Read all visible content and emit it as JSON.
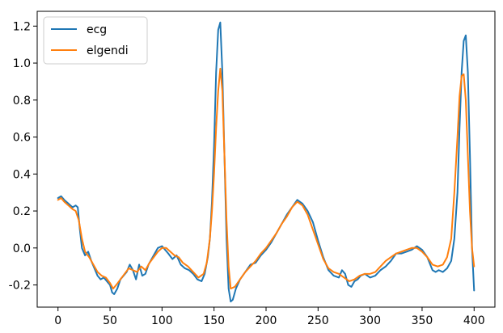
{
  "chart_data": {
    "type": "line",
    "title": "",
    "xlabel": "",
    "ylabel": "",
    "xlim": [
      -20,
      420
    ],
    "ylim": [
      -0.32,
      1.28
    ],
    "grid": false,
    "legend_position": "top-left",
    "x_ticks": [
      0,
      50,
      100,
      150,
      200,
      250,
      300,
      350,
      400
    ],
    "x_tick_labels": [
      "0",
      "50",
      "100",
      "150",
      "200",
      "250",
      "300",
      "350",
      "400"
    ],
    "y_ticks": [
      -0.2,
      0.0,
      0.2,
      0.4,
      0.6,
      0.8,
      1.0,
      1.2
    ],
    "y_tick_labels": [
      "-0.2",
      "0.0",
      "0.2",
      "0.4",
      "0.6",
      "0.8",
      "1.0",
      "1.2"
    ],
    "series": [
      {
        "name": "ecg",
        "color": "#1f77b4",
        "x": [
          0,
          3,
          6,
          10,
          14,
          17,
          19,
          21,
          23,
          26,
          29,
          32,
          35,
          38,
          41,
          44,
          47,
          50,
          52,
          54,
          57,
          60,
          63,
          66,
          69,
          72,
          75,
          78,
          81,
          84,
          87,
          90,
          93,
          96,
          100,
          103,
          106,
          110,
          114,
          118,
          122,
          126,
          130,
          134,
          138,
          141,
          144,
          146,
          148,
          150,
          152,
          154,
          156,
          158,
          160,
          162,
          164,
          166,
          168,
          171,
          175,
          180,
          185,
          190,
          195,
          200,
          205,
          210,
          215,
          220,
          225,
          230,
          235,
          240,
          245,
          250,
          255,
          260,
          265,
          270,
          273,
          276,
          279,
          282,
          285,
          288,
          291,
          295,
          300,
          305,
          310,
          315,
          320,
          325,
          330,
          335,
          340,
          345,
          350,
          355,
          360,
          363,
          366,
          370,
          374,
          378,
          381,
          384,
          386,
          388,
          390,
          392,
          394,
          396,
          398,
          400
        ],
        "y": [
          0.27,
          0.28,
          0.26,
          0.24,
          0.22,
          0.23,
          0.22,
          0.1,
          0.0,
          -0.04,
          -0.02,
          -0.07,
          -0.11,
          -0.15,
          -0.17,
          -0.16,
          -0.18,
          -0.2,
          -0.24,
          -0.25,
          -0.22,
          -0.17,
          -0.15,
          -0.13,
          -0.09,
          -0.12,
          -0.17,
          -0.09,
          -0.15,
          -0.14,
          -0.09,
          -0.06,
          -0.03,
          0.0,
          0.01,
          -0.01,
          -0.03,
          -0.06,
          -0.04,
          -0.09,
          -0.11,
          -0.12,
          -0.14,
          -0.17,
          -0.18,
          -0.14,
          -0.05,
          0.05,
          0.25,
          0.55,
          0.95,
          1.18,
          1.22,
          0.95,
          0.5,
          0.05,
          -0.22,
          -0.29,
          -0.28,
          -0.22,
          -0.17,
          -0.13,
          -0.09,
          -0.08,
          -0.04,
          -0.01,
          0.03,
          0.08,
          0.13,
          0.18,
          0.22,
          0.26,
          0.24,
          0.2,
          0.14,
          0.04,
          -0.05,
          -0.12,
          -0.15,
          -0.16,
          -0.12,
          -0.14,
          -0.2,
          -0.21,
          -0.18,
          -0.17,
          -0.15,
          -0.14,
          -0.16,
          -0.15,
          -0.12,
          -0.1,
          -0.07,
          -0.03,
          -0.03,
          -0.02,
          -0.01,
          0.01,
          -0.01,
          -0.05,
          -0.12,
          -0.13,
          -0.12,
          -0.13,
          -0.11,
          -0.07,
          0.05,
          0.3,
          0.65,
          0.95,
          1.12,
          1.15,
          0.95,
          0.5,
          0.0,
          -0.23
        ]
      },
      {
        "name": "elgendi",
        "color": "#ff7f0e",
        "x": [
          0,
          3,
          6,
          10,
          14,
          17,
          20,
          23,
          26,
          30,
          34,
          38,
          42,
          46,
          50,
          53,
          56,
          60,
          64,
          68,
          72,
          76,
          80,
          84,
          88,
          92,
          96,
          100,
          104,
          108,
          112,
          116,
          120,
          125,
          130,
          135,
          140,
          143,
          146,
          148,
          150,
          152,
          154,
          156,
          158,
          160,
          162,
          164,
          166,
          170,
          175,
          180,
          185,
          190,
          195,
          200,
          205,
          210,
          215,
          220,
          225,
          230,
          235,
          240,
          245,
          250,
          255,
          260,
          265,
          270,
          275,
          280,
          285,
          290,
          295,
          300,
          305,
          310,
          315,
          320,
          325,
          330,
          335,
          340,
          345,
          350,
          355,
          360,
          365,
          370,
          374,
          378,
          381,
          384,
          386,
          388,
          390,
          392,
          394,
          396,
          398,
          400
        ],
        "y": [
          0.26,
          0.27,
          0.25,
          0.23,
          0.21,
          0.2,
          0.15,
          0.05,
          -0.02,
          -0.05,
          -0.09,
          -0.13,
          -0.15,
          -0.16,
          -0.19,
          -0.22,
          -0.2,
          -0.17,
          -0.14,
          -0.11,
          -0.12,
          -0.13,
          -0.1,
          -0.12,
          -0.08,
          -0.05,
          -0.02,
          0.0,
          0.0,
          -0.02,
          -0.04,
          -0.05,
          -0.08,
          -0.1,
          -0.13,
          -0.16,
          -0.14,
          -0.08,
          0.05,
          0.2,
          0.4,
          0.65,
          0.85,
          0.97,
          0.85,
          0.5,
          0.15,
          -0.1,
          -0.22,
          -0.21,
          -0.17,
          -0.13,
          -0.1,
          -0.07,
          -0.03,
          0.0,
          0.04,
          0.08,
          0.13,
          0.17,
          0.22,
          0.25,
          0.23,
          0.18,
          0.1,
          0.02,
          -0.06,
          -0.11,
          -0.13,
          -0.14,
          -0.16,
          -0.18,
          -0.17,
          -0.15,
          -0.14,
          -0.14,
          -0.13,
          -0.1,
          -0.07,
          -0.05,
          -0.03,
          -0.02,
          -0.01,
          0.0,
          0.0,
          -0.02,
          -0.05,
          -0.09,
          -0.1,
          -0.09,
          -0.05,
          0.05,
          0.3,
          0.6,
          0.82,
          0.93,
          0.94,
          0.8,
          0.5,
          0.2,
          0.0,
          -0.1
        ]
      }
    ]
  }
}
